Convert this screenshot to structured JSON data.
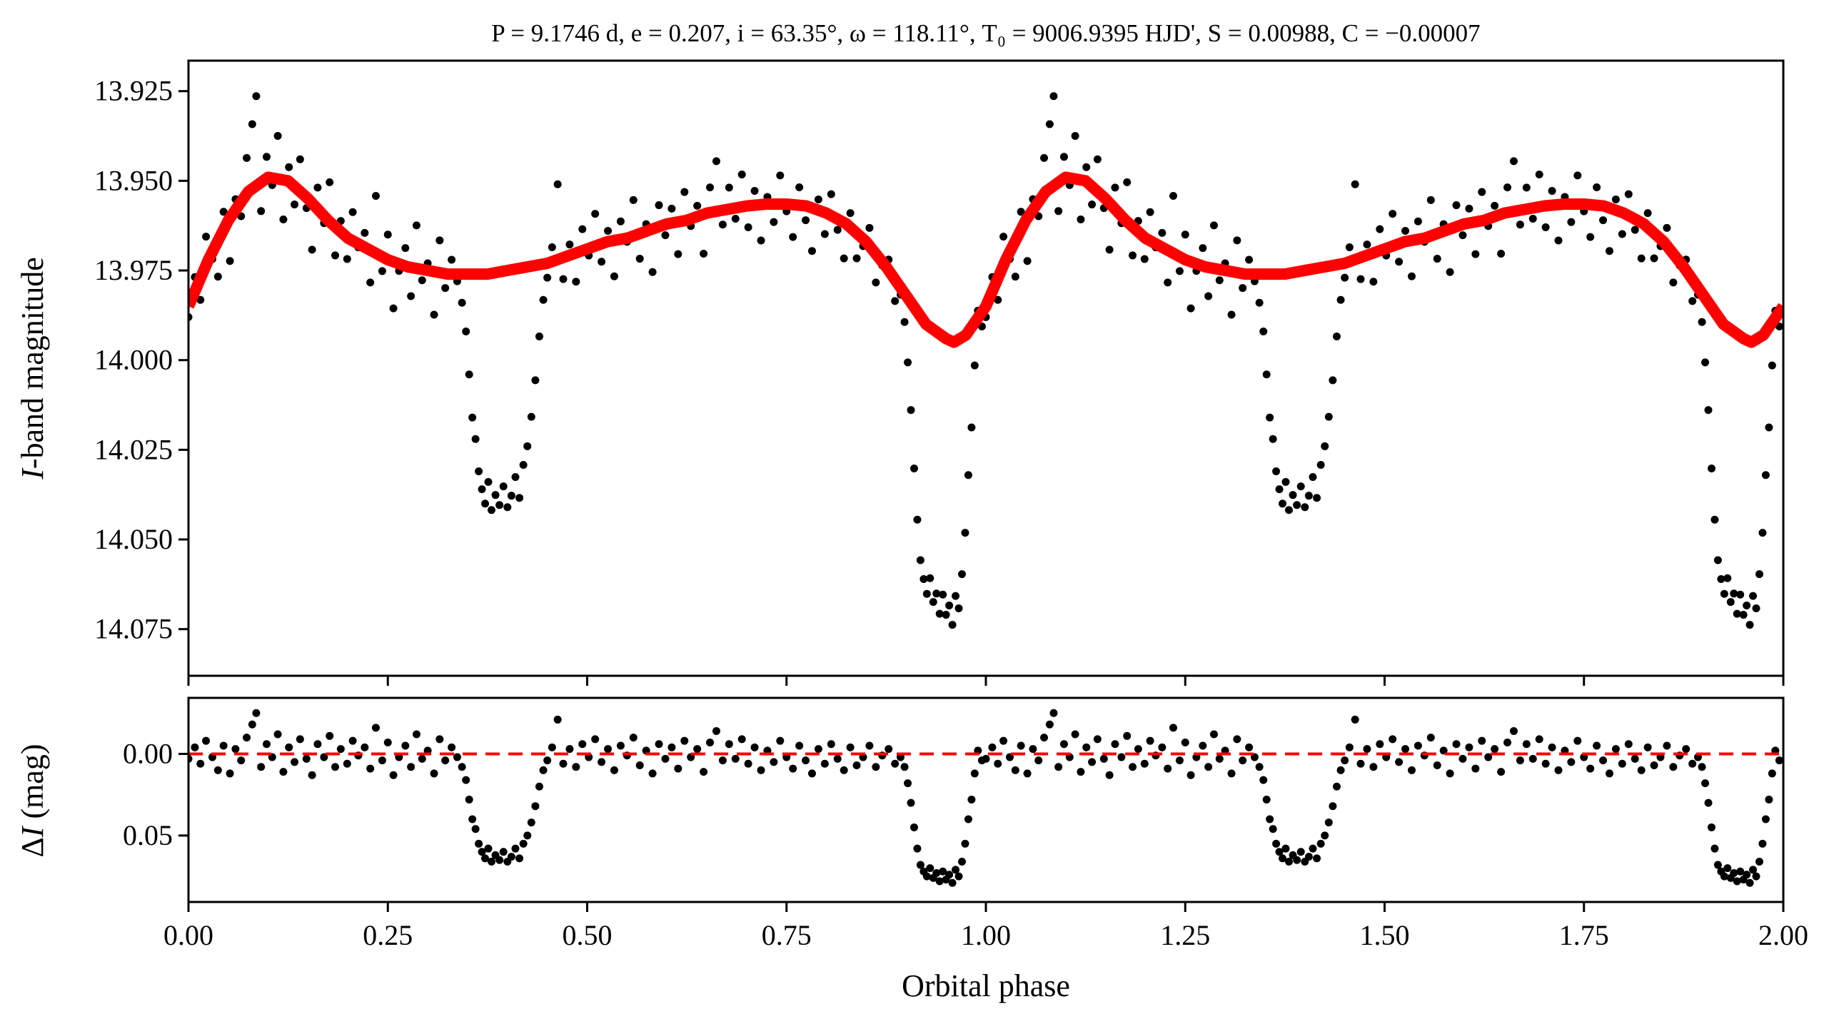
{
  "chart_data": [
    {
      "type": "scatter",
      "panel": "light-curve",
      "title": "P = 9.1746 d, e = 0.207, i = 63.35°, ω = 118.11°, T₀ = 9006.9395 HJD', S = 0.00988, C = −0.00007",
      "xlabel": "Orbital phase",
      "ylabel_parts": {
        "italic": "I",
        "rest": "-band magnitude"
      },
      "ylim": [
        13.9165,
        14.088
      ],
      "y_inverted": false,
      "xlim": [
        0,
        2
      ],
      "yticks": [
        "13.925",
        "13.950",
        "13.975",
        "14.000",
        "14.025",
        "14.050",
        "14.075"
      ],
      "ytick_values": [
        13.925,
        13.95,
        13.975,
        14.0,
        14.025,
        14.05,
        14.075
      ],
      "model_color": "#ff0000",
      "point_color": "#000000",
      "phase_repeats": 2,
      "model": [
        [
          0.0,
          13.985
        ],
        [
          0.025,
          13.972
        ],
        [
          0.05,
          13.961
        ],
        [
          0.075,
          13.953
        ],
        [
          0.1,
          13.949
        ],
        [
          0.125,
          13.95
        ],
        [
          0.15,
          13.955
        ],
        [
          0.175,
          13.961
        ],
        [
          0.2,
          13.966
        ],
        [
          0.225,
          13.969
        ],
        [
          0.25,
          13.972
        ],
        [
          0.275,
          13.974
        ],
        [
          0.3,
          13.975
        ],
        [
          0.325,
          13.976
        ],
        [
          0.35,
          13.976
        ],
        [
          0.375,
          13.976
        ],
        [
          0.4,
          13.975
        ],
        [
          0.425,
          13.974
        ],
        [
          0.45,
          13.973
        ],
        [
          0.475,
          13.971
        ],
        [
          0.5,
          13.969
        ],
        [
          0.525,
          13.967
        ],
        [
          0.55,
          13.966
        ],
        [
          0.575,
          13.964
        ],
        [
          0.6,
          13.962
        ],
        [
          0.625,
          13.961
        ],
        [
          0.65,
          13.959
        ],
        [
          0.675,
          13.958
        ],
        [
          0.7,
          13.957
        ],
        [
          0.725,
          13.9565
        ],
        [
          0.75,
          13.9565
        ],
        [
          0.775,
          13.957
        ],
        [
          0.8,
          13.959
        ],
        [
          0.825,
          13.962
        ],
        [
          0.85,
          13.967
        ],
        [
          0.875,
          13.974
        ],
        [
          0.9,
          13.982
        ],
        [
          0.925,
          13.99
        ],
        [
          0.95,
          13.994
        ],
        [
          0.96,
          13.995
        ],
        [
          0.975,
          13.993
        ],
        [
          1.0,
          13.985
        ]
      ]
    },
    {
      "type": "scatter",
      "panel": "residuals",
      "xlabel": "Orbital phase",
      "ylabel_parts": {
        "delta": "Δ",
        "italic": "I",
        "rest": " (mag)"
      },
      "ylim": [
        -0.0343,
        0.0907
      ],
      "y_inverted": true,
      "xlim": [
        0,
        2
      ],
      "xticks": [
        "0.00",
        "0.25",
        "0.50",
        "0.75",
        "1.00",
        "1.25",
        "1.50",
        "1.75",
        "2.00"
      ],
      "xtick_values": [
        0,
        0.25,
        0.5,
        0.75,
        1.0,
        1.25,
        1.5,
        1.75,
        2.0
      ],
      "yticks": [
        "0.00",
        "0.05"
      ],
      "ytick_values": [
        0,
        0.05
      ],
      "zero_line_color": "#ff0000",
      "residuals": [
        [
          0.0,
          0.003
        ],
        [
          0.008,
          -0.004
        ],
        [
          0.015,
          0.006
        ],
        [
          0.022,
          -0.008
        ],
        [
          0.03,
          0.002
        ],
        [
          0.037,
          0.01
        ],
        [
          0.044,
          -0.005
        ],
        [
          0.052,
          0.012
        ],
        [
          0.059,
          -0.003
        ],
        [
          0.066,
          0.004
        ],
        [
          0.073,
          -0.01
        ],
        [
          0.08,
          -0.018
        ],
        [
          0.085,
          -0.025
        ],
        [
          0.091,
          0.008
        ],
        [
          0.098,
          -0.006
        ],
        [
          0.105,
          0.002
        ],
        [
          0.112,
          -0.012
        ],
        [
          0.119,
          0.011
        ],
        [
          0.126,
          -0.004
        ],
        [
          0.133,
          0.005
        ],
        [
          0.14,
          -0.009
        ],
        [
          0.148,
          0.003
        ],
        [
          0.155,
          0.013
        ],
        [
          0.162,
          -0.006
        ],
        [
          0.17,
          0.002
        ],
        [
          0.177,
          -0.011
        ],
        [
          0.184,
          0.008
        ],
        [
          0.191,
          -0.003
        ],
        [
          0.199,
          0.006
        ],
        [
          0.206,
          -0.008
        ],
        [
          0.213,
          0.001
        ],
        [
          0.221,
          -0.004
        ],
        [
          0.228,
          0.009
        ],
        [
          0.235,
          -0.016
        ],
        [
          0.243,
          0.004
        ],
        [
          0.25,
          -0.007
        ],
        [
          0.257,
          0.013
        ],
        [
          0.264,
          0.002
        ],
        [
          0.272,
          -0.005
        ],
        [
          0.279,
          0.008
        ],
        [
          0.286,
          -0.012
        ],
        [
          0.293,
          0.003
        ],
        [
          0.3,
          -0.002
        ],
        [
          0.308,
          0.012
        ],
        [
          0.315,
          -0.009
        ],
        [
          0.322,
          0.004
        ],
        [
          0.33,
          -0.004
        ],
        [
          0.337,
          0.002
        ],
        [
          0.343,
          0.008
        ],
        [
          0.348,
          0.016
        ],
        [
          0.352,
          0.028
        ],
        [
          0.356,
          0.04
        ],
        [
          0.36,
          0.046
        ],
        [
          0.364,
          0.055
        ],
        [
          0.368,
          0.06
        ],
        [
          0.372,
          0.064
        ],
        [
          0.376,
          0.058
        ],
        [
          0.38,
          0.066
        ],
        [
          0.385,
          0.062
        ],
        [
          0.39,
          0.065
        ],
        [
          0.395,
          0.06
        ],
        [
          0.4,
          0.066
        ],
        [
          0.405,
          0.063
        ],
        [
          0.41,
          0.058
        ],
        [
          0.415,
          0.064
        ],
        [
          0.42,
          0.055
        ],
        [
          0.425,
          0.05
        ],
        [
          0.43,
          0.042
        ],
        [
          0.435,
          0.032
        ],
        [
          0.44,
          0.02
        ],
        [
          0.445,
          0.01
        ],
        [
          0.45,
          0.004
        ],
        [
          0.456,
          -0.004
        ],
        [
          0.463,
          -0.021
        ],
        [
          0.47,
          0.006
        ],
        [
          0.478,
          -0.003
        ],
        [
          0.486,
          0.008
        ],
        [
          0.494,
          -0.006
        ],
        [
          0.502,
          0.002
        ],
        [
          0.51,
          -0.009
        ],
        [
          0.518,
          0.005
        ],
        [
          0.526,
          -0.003
        ],
        [
          0.534,
          0.01
        ],
        [
          0.542,
          -0.005
        ],
        [
          0.55,
          0.001
        ],
        [
          0.558,
          -0.01
        ],
        [
          0.566,
          0.007
        ],
        [
          0.574,
          -0.002
        ],
        [
          0.582,
          0.012
        ],
        [
          0.59,
          -0.006
        ],
        [
          0.598,
          0.003
        ],
        [
          0.606,
          -0.004
        ],
        [
          0.614,
          0.009
        ],
        [
          0.622,
          -0.008
        ],
        [
          0.63,
          0.002
        ],
        [
          0.638,
          -0.003
        ],
        [
          0.646,
          0.011
        ],
        [
          0.654,
          -0.007
        ],
        [
          0.662,
          -0.014
        ],
        [
          0.67,
          0.004
        ],
        [
          0.678,
          -0.006
        ],
        [
          0.686,
          0.003
        ],
        [
          0.694,
          -0.009
        ],
        [
          0.702,
          0.006
        ],
        [
          0.71,
          -0.004
        ],
        [
          0.718,
          0.01
        ],
        [
          0.726,
          -0.002
        ],
        [
          0.734,
          0.005
        ],
        [
          0.742,
          -0.008
        ],
        [
          0.75,
          0.002
        ],
        [
          0.758,
          0.009
        ],
        [
          0.766,
          -0.005
        ],
        [
          0.774,
          0.004
        ],
        [
          0.782,
          0.012
        ],
        [
          0.79,
          -0.003
        ],
        [
          0.798,
          0.006
        ],
        [
          0.806,
          -0.006
        ],
        [
          0.814,
          0.003
        ],
        [
          0.822,
          0.01
        ],
        [
          0.83,
          -0.004
        ],
        [
          0.838,
          0.007
        ],
        [
          0.846,
          0.002
        ],
        [
          0.854,
          -0.005
        ],
        [
          0.862,
          0.008
        ],
        [
          0.87,
          0.001
        ],
        [
          0.878,
          -0.003
        ],
        [
          0.886,
          0.006
        ],
        [
          0.893,
          0.002
        ],
        [
          0.898,
          0.008
        ],
        [
          0.902,
          0.018
        ],
        [
          0.906,
          0.03
        ],
        [
          0.91,
          0.045
        ],
        [
          0.914,
          0.058
        ],
        [
          0.918,
          0.068
        ],
        [
          0.922,
          0.072
        ],
        [
          0.926,
          0.075
        ],
        [
          0.93,
          0.07
        ],
        [
          0.934,
          0.076
        ],
        [
          0.938,
          0.073
        ],
        [
          0.942,
          0.078
        ],
        [
          0.946,
          0.072
        ],
        [
          0.95,
          0.077
        ],
        [
          0.954,
          0.074
        ],
        [
          0.958,
          0.079
        ],
        [
          0.962,
          0.071
        ],
        [
          0.966,
          0.075
        ],
        [
          0.97,
          0.066
        ],
        [
          0.974,
          0.055
        ],
        [
          0.978,
          0.04
        ],
        [
          0.982,
          0.028
        ],
        [
          0.986,
          0.012
        ],
        [
          0.99,
          -0.002
        ],
        [
          0.995,
          0.004
        ]
      ]
    }
  ]
}
